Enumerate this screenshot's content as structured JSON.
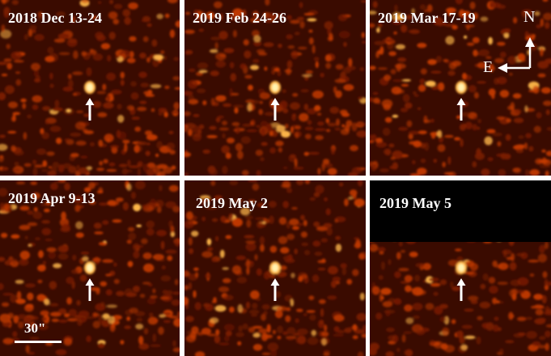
{
  "panels": [
    {
      "label": "2018 Dec 13-24",
      "seed": 11,
      "blank_top": false
    },
    {
      "label": "2019 Feb 24-26",
      "seed": 23,
      "blank_top": false
    },
    {
      "label": "2019 Mar 17-19",
      "seed": 37,
      "blank_top": false
    },
    {
      "label": "2019 Apr 9-13",
      "seed": 41,
      "blank_top": false
    },
    {
      "label": "2019 May 2",
      "seed": 53,
      "blank_top": false
    },
    {
      "label": "2019 May 5",
      "seed": 67,
      "blank_top": true
    }
  ],
  "compass": {
    "north": "N",
    "east": "E"
  },
  "scalebar": {
    "label": "30\""
  },
  "colors": {
    "background": "#3a0b00",
    "blob_mid": "#c23a00",
    "blob_hot": "#ffb84a",
    "blob_peak": "#fff3b0",
    "marker": "#ffffff"
  }
}
